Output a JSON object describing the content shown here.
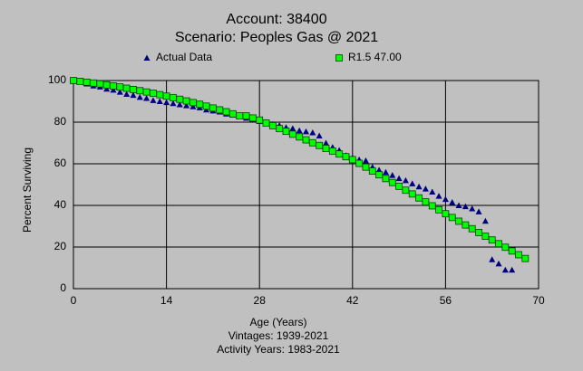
{
  "chart_data": {
    "type": "scatter",
    "title": [
      "Account: 38400",
      "Scenario: Peoples Gas @ 2021"
    ],
    "xlabel": "Age (Years)",
    "ylabel": "Percent Surviving",
    "notes": [
      "Vintages: 1939-2021",
      "Activity Years: 1983-2021"
    ],
    "xlim": [
      0,
      70
    ],
    "xticks": [
      0,
      14,
      28,
      42,
      56,
      70
    ],
    "ylim": [
      0,
      100
    ],
    "yticks": [
      0,
      20,
      40,
      60,
      80,
      100
    ],
    "grid": true,
    "legend": "top",
    "series": [
      {
        "name": "Actual Data",
        "color": "#000080",
        "marker": "triangle",
        "x": [
          0,
          1,
          2,
          3,
          4,
          5,
          6,
          7,
          8,
          9,
          10,
          11,
          12,
          13,
          14,
          15,
          16,
          17,
          18,
          19,
          20,
          21,
          22,
          23,
          24,
          25,
          26,
          27,
          28,
          29,
          30,
          31,
          32,
          33,
          34,
          35,
          36,
          37,
          38,
          39,
          40,
          41,
          42,
          43,
          44,
          45,
          46,
          47,
          48,
          49,
          50,
          51,
          52,
          53,
          54,
          55,
          56,
          57,
          58,
          59,
          60,
          61,
          62,
          63,
          64,
          65,
          66
        ],
        "values": [
          100,
          99.5,
          98.5,
          97.5,
          97,
          96,
          95.5,
          94.5,
          93.5,
          93,
          92,
          91.5,
          90.5,
          90,
          89.5,
          89,
          88.5,
          88,
          87.5,
          87,
          86,
          85.5,
          85,
          84,
          83.5,
          83,
          82,
          81.5,
          80.5,
          80,
          79,
          78.5,
          77.5,
          77,
          76,
          75.5,
          75,
          73.5,
          70,
          68,
          66.5,
          64,
          63,
          62,
          61.5,
          58.5,
          57,
          56,
          54.5,
          53,
          52,
          50.5,
          49,
          48,
          46.5,
          44.5,
          43,
          41.5,
          40,
          39.5,
          38.5,
          37,
          32.5,
          14,
          12,
          9,
          9
        ]
      },
      {
        "name": "R1.5 47.00",
        "color": "#00ff00",
        "marker": "square",
        "x": [
          0,
          1,
          2,
          3,
          4,
          5,
          6,
          7,
          8,
          9,
          10,
          11,
          12,
          13,
          14,
          15,
          16,
          17,
          18,
          19,
          20,
          21,
          22,
          23,
          24,
          25,
          26,
          27,
          28,
          29,
          30,
          31,
          32,
          33,
          34,
          35,
          36,
          37,
          38,
          39,
          40,
          41,
          42,
          43,
          44,
          45,
          46,
          47,
          48,
          49,
          50,
          51,
          52,
          53,
          54,
          55,
          56,
          57,
          58,
          59,
          60,
          61,
          62,
          63,
          64,
          65,
          66,
          67,
          68
        ],
        "values": [
          100,
          99.6,
          99.2,
          98.8,
          98.4,
          97.9,
          97.4,
          96.9,
          96.3,
          95.7,
          95.1,
          94.5,
          93.9,
          93.2,
          92.5,
          91.8,
          91,
          90.2,
          89.4,
          88.6,
          87.7,
          86.8,
          85.9,
          85,
          84,
          83,
          83,
          82,
          81,
          79.6,
          78.3,
          76.9,
          75.6,
          74.2,
          72.9,
          71.5,
          70.1,
          68.8,
          67.4,
          66.1,
          64.7,
          63.4,
          62,
          60.2,
          58.4,
          56.5,
          54.7,
          52.9,
          51,
          49.2,
          47.3,
          45.5,
          43.6,
          41.7,
          39.8,
          37.9,
          36,
          34.2,
          32.4,
          30.6,
          28.8,
          27,
          25.2,
          23.4,
          21.6,
          19.9,
          18.1,
          16.3,
          14.5
        ]
      }
    ]
  }
}
